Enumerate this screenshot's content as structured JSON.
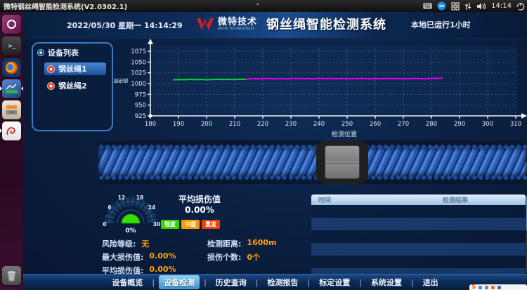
{
  "desktop": {
    "titlebar": {
      "title": "微特钢丝绳智能检测系统(V2.0302.1)",
      "chevron": "⌄",
      "clock": "14:14"
    },
    "tray": [
      "keyboard-icon",
      "teamviewer-icon",
      "workspaces-icon",
      "network-arrows-icon",
      "volume-icon",
      "clock",
      "power-icon"
    ],
    "launcher": [
      "ubuntu-dash",
      "terminal",
      "firefox",
      "detection-app",
      "file-manager",
      "report-app",
      "trash"
    ]
  },
  "header": {
    "datetime": "2022/05/30  星期一  14:14:29",
    "brand_cn": "微特技术",
    "brand_en": "WEITE TECHNOLOGIES",
    "app_title": "钢丝绳智能检测系统",
    "uptime": "本地已运行1小时"
  },
  "device_panel": {
    "title": "设备列表",
    "items": [
      {
        "label": "钢丝绳1",
        "selected": true
      },
      {
        "label": "钢丝绳2",
        "selected": false
      }
    ]
  },
  "chart_data": {
    "type": "line",
    "title": "",
    "xlabel": "检测位置",
    "ylabel": "损伤值",
    "xlim": [
      180,
      318
    ],
    "ylim": [
      925,
      1090
    ],
    "x_ticks": [
      180,
      190,
      200,
      210,
      220,
      230,
      240,
      250,
      260,
      270,
      280,
      290,
      300,
      310
    ],
    "y_ticks": [
      925,
      950,
      975,
      1000,
      1025,
      1050,
      1075
    ],
    "grid": true,
    "legend_position": "none",
    "series": [
      {
        "name": "checked-segment",
        "color": "#00d830",
        "points": [
          [
            188,
            1008.5
          ],
          [
            190,
            1009.5
          ],
          [
            192,
            1009.0
          ],
          [
            194,
            1009.8
          ],
          [
            196,
            1009.2
          ],
          [
            198,
            1009.6
          ],
          [
            200,
            1009.0
          ],
          [
            202,
            1009.4
          ],
          [
            204,
            1010.0
          ],
          [
            206,
            1009.3
          ],
          [
            208,
            1009.8
          ],
          [
            210,
            1009.4
          ],
          [
            212,
            1010.0
          ],
          [
            214,
            1009.6
          ]
        ]
      },
      {
        "name": "current-segment",
        "color": "#ea00ea",
        "points": [
          [
            214,
            1010.5
          ],
          [
            216,
            1011.0
          ],
          [
            218,
            1011.5
          ],
          [
            220,
            1011.0
          ],
          [
            222,
            1011.8
          ],
          [
            224,
            1011.2
          ],
          [
            226,
            1011.6
          ],
          [
            228,
            1011.0
          ],
          [
            230,
            1011.5
          ],
          [
            232,
            1011.9
          ],
          [
            234,
            1011.3
          ],
          [
            236,
            1011.7
          ],
          [
            238,
            1011.2
          ],
          [
            240,
            1011.8
          ],
          [
            242,
            1011.4
          ],
          [
            244,
            1011.9
          ],
          [
            246,
            1011.3
          ],
          [
            248,
            1011.6
          ],
          [
            250,
            1011.1
          ],
          [
            252,
            1011.7
          ],
          [
            254,
            1011.4
          ],
          [
            256,
            1011.8
          ],
          [
            258,
            1011.2
          ],
          [
            260,
            1011.6
          ],
          [
            262,
            1011.3
          ],
          [
            264,
            1011.8
          ],
          [
            266,
            1011.4
          ],
          [
            268,
            1011.7
          ],
          [
            270,
            1011.2
          ],
          [
            272,
            1011.6
          ],
          [
            274,
            1011.9
          ],
          [
            276,
            1011.3
          ],
          [
            278,
            1011.5
          ],
          [
            280,
            1011.8
          ],
          [
            282,
            1012.3
          ],
          [
            284,
            1012.6
          ]
        ]
      }
    ]
  },
  "gauge": {
    "ticks": [
      "0",
      "6",
      "12",
      "18",
      "24",
      "30"
    ],
    "needle_label": "0%",
    "title": "平均损伤值",
    "value": "0.00%",
    "legend": [
      {
        "label": "轻度",
        "color": "#35d300"
      },
      {
        "label": "中度",
        "color": "#ff9900"
      },
      {
        "label": "重度",
        "color": "#f23c00"
      }
    ]
  },
  "stats": {
    "rows": [
      [
        {
          "label": "风险等级:",
          "value": "无"
        },
        {
          "label": "检测距离:",
          "value": "1600m"
        }
      ],
      [
        {
          "label": "最大损伤值:",
          "value": "0.00%"
        },
        {
          "label": "损伤个数:",
          "value": "0个"
        }
      ],
      [
        {
          "label": "平均损伤值:",
          "value": "0.00%"
        }
      ]
    ]
  },
  "result_table": {
    "columns": [
      "时间",
      "检测结果"
    ],
    "rows": []
  },
  "bottom_nav": {
    "separator": "|",
    "items": [
      {
        "label": "设备概览",
        "active": false
      },
      {
        "label": "设备检测",
        "active": true
      },
      {
        "label": "历史查询",
        "active": false
      },
      {
        "label": "检测报告",
        "active": false
      },
      {
        "label": "标定设置",
        "active": false
      },
      {
        "label": "系统设置",
        "active": false
      },
      {
        "label": "退出",
        "active": false
      }
    ]
  },
  "ime_bar": {
    "logo": "S"
  }
}
